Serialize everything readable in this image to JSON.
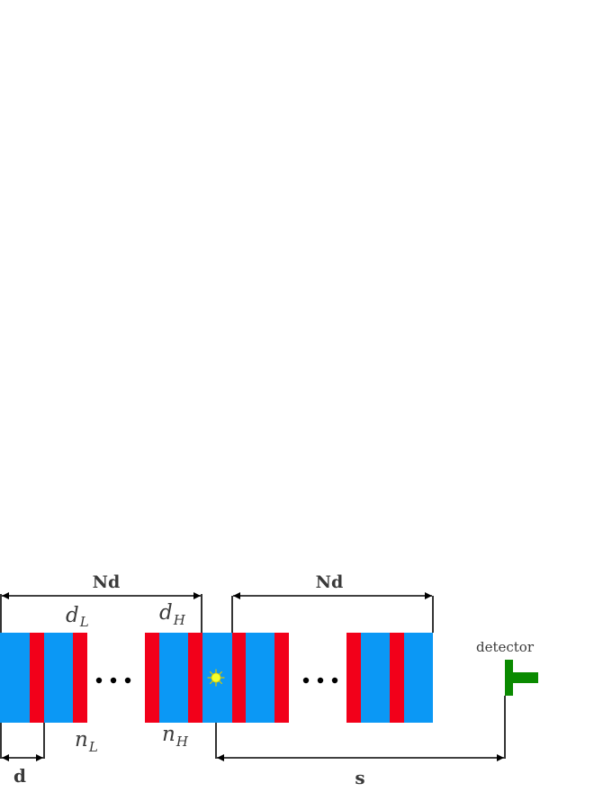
{
  "labels": {
    "nd_left": "Nd",
    "nd_right": "Nd",
    "d_L": {
      "base": "d",
      "sub": "L"
    },
    "d_H": {
      "base": "d",
      "sub": "H"
    },
    "n_L": {
      "base": "n",
      "sub": "L"
    },
    "n_H": {
      "base": "n",
      "sub": "H"
    },
    "period": "d",
    "distance": "s",
    "detector": "detector"
  },
  "colors": {
    "low_index_layer": "#0b98f5",
    "high_index_layer": "#f2001a",
    "source": "#f4ff2a",
    "detector": "#0a8a00",
    "line": "#000000"
  },
  "icons": {
    "source": "sun-source-icon",
    "detector": "detector-icon",
    "ellipsis": "ellipsis-dots"
  }
}
